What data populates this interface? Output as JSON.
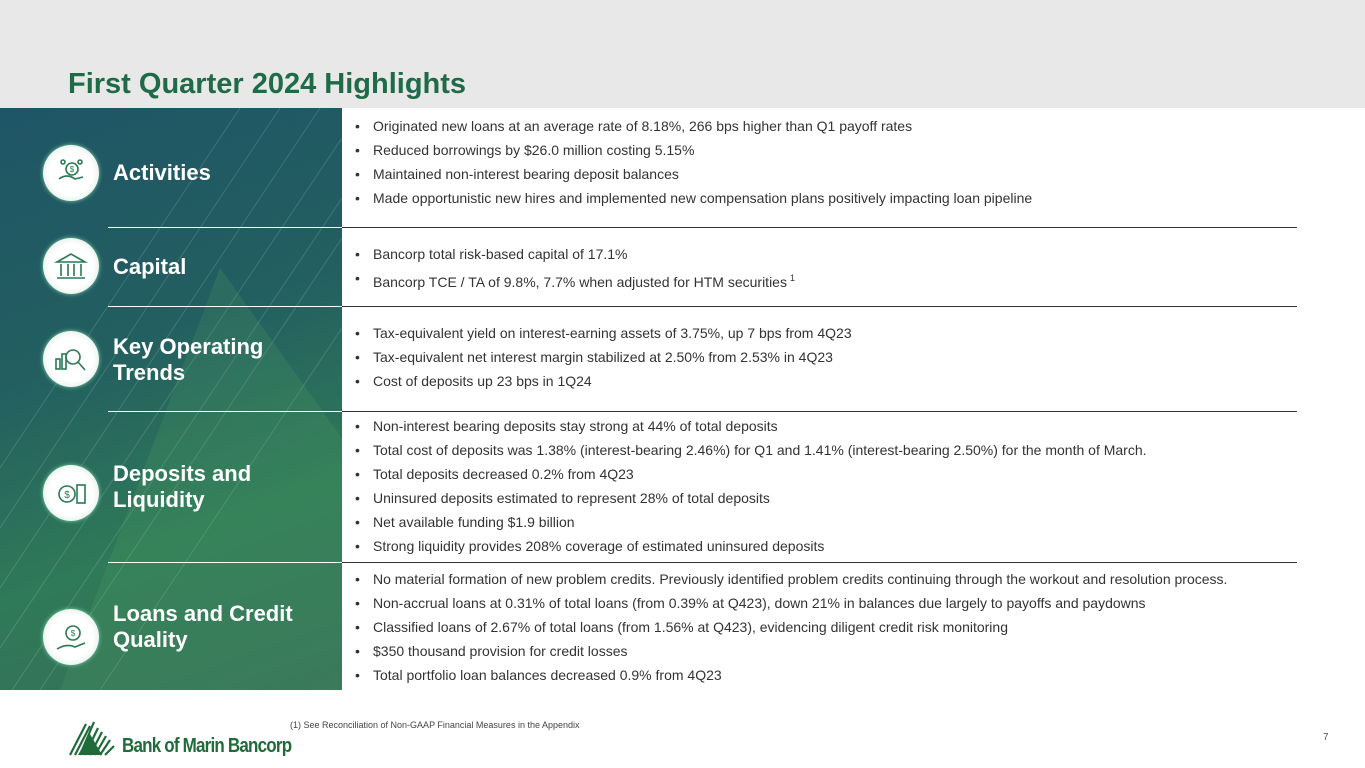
{
  "title": "First Quarter 2024 Highlights",
  "sections": [
    {
      "label": "Activities",
      "icon": "hand-money-icon",
      "bullets": [
        "Originated new loans at an average rate of 8.18%, 266 bps higher than Q1 payoff rates",
        "Reduced borrowings by $26.0 million costing 5.15%",
        "Maintained non-interest bearing deposit balances",
        "Made opportunistic new hires and implemented new compensation plans positively impacting loan pipeline"
      ]
    },
    {
      "label": "Capital",
      "icon": "bank-building-icon",
      "bullets": [
        "Bancorp total risk-based capital of 17.1%",
        "Bancorp TCE / TA of 9.8%, 7.7% when adjusted for HTM securities"
      ],
      "footnote_mark": "1"
    },
    {
      "label": "Key Operating Trends",
      "icon": "chart-magnifier-icon",
      "bullets": [
        "Tax-equivalent yield on interest-earning assets of 3.75%, up 7 bps from 4Q23",
        "Tax-equivalent net interest margin stabilized at 2.50% from 2.53% in 4Q23",
        "Cost of deposits up 23 bps in 1Q24"
      ]
    },
    {
      "label": "Deposits and Liquidity",
      "icon": "coins-icon",
      "bullets": [
        "Non-interest bearing deposits stay strong at 44% of total deposits",
        "Total cost of deposits was 1.38% (interest-bearing 2.46%) for Q1 and 1.41% (interest-bearing 2.50%) for the month of March.",
        "Total deposits decreased 0.2% from 4Q23",
        "Uninsured deposits estimated to represent 28% of total deposits",
        "Net available funding $1.9 billion",
        "Strong liquidity provides 208% coverage of estimated uninsured deposits"
      ]
    },
    {
      "label": "Loans and Credit Quality",
      "icon": "hand-coin-icon",
      "bullets": [
        "No material formation of new problem credits.  Previously identified problem credits continuing through the workout and resolution process.",
        "Non-accrual loans at 0.31% of total loans (from 0.39% at Q423), down 21% in balances due largely to payoffs and paydowns",
        "Classified loans of 2.67% of total loans (from 1.56% at Q423), evidencing diligent credit risk monitoring",
        "$350 thousand provision for credit losses",
        "Total portfolio loan balances decreased 0.9% from 4Q23"
      ]
    }
  ],
  "footnote": "(1) See Reconciliation of Non-GAAP Financial Measures in the Appendix",
  "page_number": "7",
  "logo_text": "Bank of Marin Bancorp",
  "colors": {
    "title": "#1f6b48",
    "panel": "#235f60"
  }
}
